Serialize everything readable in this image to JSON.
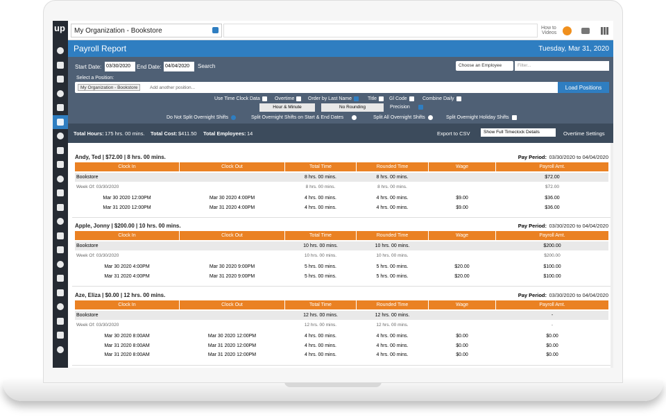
{
  "logo": "up",
  "topbar": {
    "org_select": "My Organization - Bookstore",
    "how_to": [
      "How to",
      "Videos"
    ]
  },
  "header": {
    "title": "Payroll Report",
    "date": "Tuesday, Mar 31, 2020"
  },
  "filters": {
    "start_label": "Start Date:",
    "start": "03/30/2020",
    "end_label": "End Date:",
    "end": "04/04/2020",
    "search": "Search",
    "employee_select": "Choose an Employee",
    "filter_placeholder": "Filter...",
    "position_label": "Select a Position:",
    "position_tag": "My Organization - Bookstore",
    "position_placeholder": "Add another position...",
    "load_button": "Load Positions",
    "checkboxes": [
      {
        "label": "Use Time Clock Data",
        "checked": false
      },
      {
        "label": "Overtime",
        "checked": false
      },
      {
        "label": "Order by Last Name",
        "checked": true
      },
      {
        "label": "Title",
        "checked": false
      },
      {
        "label": "Gl Code",
        "checked": false
      },
      {
        "label": "Combine Daily",
        "checked": false
      }
    ],
    "time_format": "Hour & Minute",
    "rounding": "No Rounding",
    "precision": {
      "label": "Precision",
      "checked": true
    },
    "split_options": [
      {
        "label": "Do Not Split Overnight Shifts",
        "checked": true
      },
      {
        "label": "Split Overnight Shifts on Start & End Dates",
        "checked": false
      },
      {
        "label": "Split All Overnight Shifts",
        "checked": false
      },
      {
        "label": "Split Overnight Holiday Shifts",
        "checked": false
      }
    ]
  },
  "summary": {
    "total_hours_label": "Total Hours:",
    "total_hours": "175 hrs. 00 mins.",
    "total_cost_label": "Total Cost:",
    "total_cost": "$411.50",
    "total_employees_label": "Total Employees:",
    "total_employees": "14",
    "export": "Export to CSV",
    "details_select": "Show Full Timeclock Details",
    "overtime": "Overtime Settings"
  },
  "columns": [
    "Clock In",
    "Clock Out",
    "Total Time",
    "Rounded Time",
    "Wage",
    "Payroll Amt."
  ],
  "pay_period_label": "Pay Period:",
  "employees": [
    {
      "name": "Andy, Ted | $72.00 | 8 hrs. 00 mins.",
      "pay_period": "03/30/2020 to 04/04/2020",
      "position_row": {
        "label": "Bookstore",
        "total": "8 hrs. 00 mins.",
        "rounded": "8 hrs. 00 mins.",
        "amount": "$72.00"
      },
      "week_row": {
        "label": "Week Of: 03/30/2020",
        "total": "8 hrs. 00 mins.",
        "rounded": "8 hrs. 00 mins.",
        "amount": "$72.00"
      },
      "rows": [
        [
          "Mar 30 2020 12:00PM",
          "Mar 30 2020 4:00PM",
          "4 hrs. 00 mins.",
          "4 hrs. 00 mins.",
          "$9.00",
          "$36.00"
        ],
        [
          "Mar 31 2020 12:00PM",
          "Mar 31 2020 4:00PM",
          "4 hrs. 00 mins.",
          "4 hrs. 00 mins.",
          "$9.00",
          "$36.00"
        ]
      ]
    },
    {
      "name": "Apple, Jonny | $200.00 | 10 hrs. 00 mins.",
      "pay_period": "03/30/2020 to 04/04/2020",
      "position_row": {
        "label": "Bookstore",
        "total": "10 hrs. 00 mins.",
        "rounded": "10 hrs. 00 mins.",
        "amount": "$200.00"
      },
      "week_row": {
        "label": "Week Of: 03/30/2020",
        "total": "10 hrs. 00 mins.",
        "rounded": "10 hrs. 00 mins.",
        "amount": "$200.00"
      },
      "rows": [
        [
          "Mar 30 2020 4:00PM",
          "Mar 30 2020 9:00PM",
          "5 hrs. 00 mins.",
          "5 hrs. 00 mins.",
          "$20.00",
          "$100.00"
        ],
        [
          "Mar 31 2020 4:00PM",
          "Mar 31 2020 9:00PM",
          "5 hrs. 00 mins.",
          "5 hrs. 00 mins.",
          "$20.00",
          "$100.00"
        ]
      ]
    },
    {
      "name": "Aze, Eliza | $0.00 | 12 hrs. 00 mins.",
      "pay_period": "03/30/2020 to 04/04/2020",
      "position_row": {
        "label": "Bookstore",
        "total": "12 hrs. 00 mins.",
        "rounded": "12 hrs. 00 mins.",
        "amount": "-"
      },
      "week_row": {
        "label": "Week Of: 03/30/2020",
        "total": "12 hrs. 00 mins.",
        "rounded": "12 hrs. 00 mins.",
        "amount": "-"
      },
      "rows": [
        [
          "Mar 30 2020 8:00AM",
          "Mar 30 2020 12:00PM",
          "4 hrs. 00 mins.",
          "4 hrs. 00 mins.",
          "$0.00",
          "$0.00"
        ],
        [
          "Mar 31 2020 8:00AM",
          "Mar 31 2020 12:00PM",
          "4 hrs. 00 mins.",
          "4 hrs. 00 mins.",
          "$0.00",
          "$0.00"
        ],
        [
          "Mar 31 2020 8:00AM",
          "Mar 31 2020 12:00PM",
          "4 hrs. 00 mins.",
          "4 hrs. 00 mins.",
          "$0.00",
          "$0.00"
        ]
      ]
    }
  ]
}
